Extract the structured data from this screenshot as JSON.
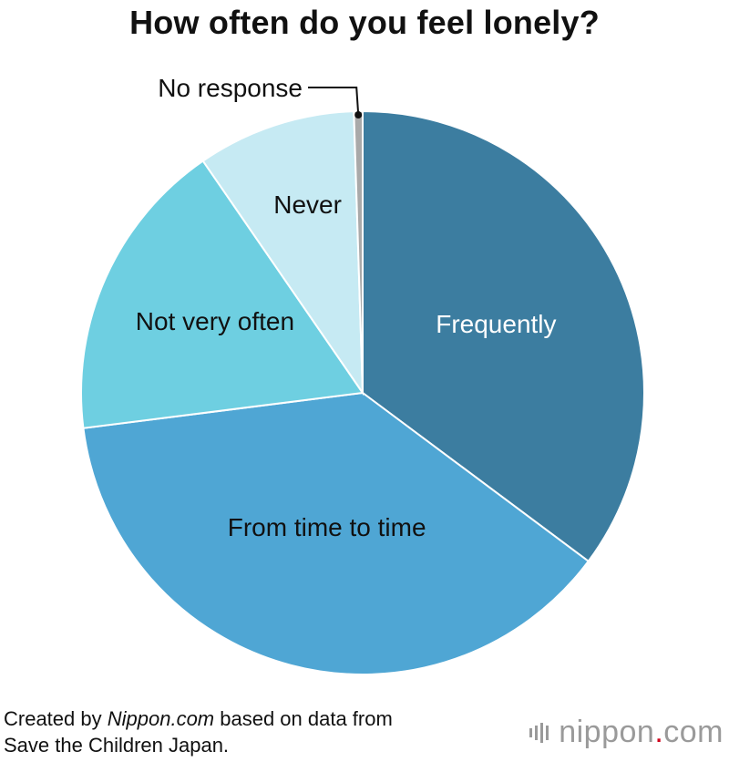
{
  "chart_data": {
    "type": "pie",
    "title": "How often do you feel lonely?",
    "start_angle_deg": 0,
    "direction": "clockwise",
    "slices": [
      {
        "label": "Frequently",
        "value": 35.2,
        "color": "#3c7da0",
        "label_color": "#ffffff"
      },
      {
        "label": "From time to time",
        "value": 37.8,
        "color": "#4fa6d4",
        "label_color": "#111111"
      },
      {
        "label": "Not very often",
        "value": 17.4,
        "color": "#6ecfe1",
        "label_color": "#111111"
      },
      {
        "label": "Never",
        "value": 9.1,
        "color": "#c6eaf3",
        "label_color": "#111111"
      },
      {
        "label": "No response",
        "value": 0.5,
        "color": "#a9a9a9",
        "label_color": "#111111"
      }
    ]
  },
  "footer": {
    "credit_prefix": "Created by ",
    "credit_source": "Nippon.com",
    "credit_suffix": " based on data from",
    "credit_line2": "Save the Children Japan.",
    "brand_name": "nippon",
    "brand_dot": ".",
    "brand_tld": "com"
  }
}
